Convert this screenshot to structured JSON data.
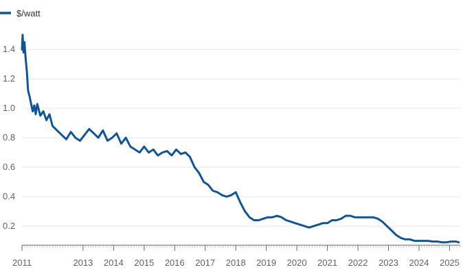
{
  "chart_data": {
    "type": "line",
    "title": "",
    "xlabel": "",
    "ylabel": "",
    "legend": {
      "placement": "top-left",
      "entries": [
        "$/watt"
      ]
    },
    "grid": true,
    "xlim": [
      2011.0,
      2025.35
    ],
    "ylim": [
      0.07,
      1.55
    ],
    "x_ticks": [
      "2011",
      "2013",
      "2014",
      "2015",
      "2016",
      "2017",
      "2018",
      "2019",
      "2020",
      "2021",
      "2022",
      "2023",
      "2024",
      "2025"
    ],
    "y_ticks": [
      "0.2",
      "0.4",
      "0.6",
      "0.8",
      "1.0",
      "1.2",
      "1.4"
    ],
    "colors": {
      "series": "#0f5499",
      "grid": "#e9e6e3",
      "text": "#66605c"
    },
    "series": [
      {
        "name": "$/watt",
        "x": [
          2011.0,
          2011.02,
          2011.05,
          2011.08,
          2011.12,
          2011.16,
          2011.2,
          2011.25,
          2011.3,
          2011.35,
          2011.4,
          2011.45,
          2011.5,
          2011.6,
          2011.7,
          2011.8,
          2011.9,
          2012.0,
          2012.15,
          2012.3,
          2012.45,
          2012.6,
          2012.75,
          2012.9,
          2013.05,
          2013.2,
          2013.35,
          2013.5,
          2013.65,
          2013.8,
          2013.95,
          2014.1,
          2014.25,
          2014.4,
          2014.55,
          2014.7,
          2014.85,
          2015.0,
          2015.15,
          2015.3,
          2015.45,
          2015.6,
          2015.75,
          2015.9,
          2016.05,
          2016.2,
          2016.35,
          2016.5,
          2016.65,
          2016.8,
          2016.95,
          2017.1,
          2017.25,
          2017.4,
          2017.55,
          2017.7,
          2017.85,
          2018.0,
          2018.15,
          2018.3,
          2018.45,
          2018.6,
          2018.75,
          2018.9,
          2019.05,
          2019.2,
          2019.35,
          2019.5,
          2019.65,
          2019.8,
          2019.95,
          2020.1,
          2020.25,
          2020.4,
          2020.55,
          2020.7,
          2020.85,
          2021.0,
          2021.15,
          2021.3,
          2021.45,
          2021.6,
          2021.75,
          2021.9,
          2022.05,
          2022.2,
          2022.35,
          2022.5,
          2022.65,
          2022.8,
          2022.95,
          2023.1,
          2023.25,
          2023.4,
          2023.55,
          2023.7,
          2023.85,
          2024.0,
          2024.15,
          2024.3,
          2024.45,
          2024.6,
          2024.75,
          2024.9,
          2025.05,
          2025.2,
          2025.3
        ],
        "values": [
          1.4,
          1.5,
          1.38,
          1.45,
          1.34,
          1.25,
          1.12,
          1.08,
          1.03,
          0.98,
          1.02,
          0.96,
          1.03,
          0.95,
          0.98,
          0.92,
          0.96,
          0.88,
          0.85,
          0.82,
          0.79,
          0.84,
          0.8,
          0.78,
          0.82,
          0.86,
          0.83,
          0.8,
          0.85,
          0.78,
          0.8,
          0.83,
          0.76,
          0.8,
          0.74,
          0.72,
          0.7,
          0.74,
          0.7,
          0.72,
          0.68,
          0.7,
          0.71,
          0.68,
          0.72,
          0.69,
          0.7,
          0.67,
          0.6,
          0.56,
          0.5,
          0.48,
          0.44,
          0.43,
          0.41,
          0.4,
          0.41,
          0.43,
          0.36,
          0.3,
          0.26,
          0.24,
          0.24,
          0.25,
          0.26,
          0.26,
          0.27,
          0.26,
          0.24,
          0.23,
          0.22,
          0.21,
          0.2,
          0.19,
          0.2,
          0.21,
          0.22,
          0.22,
          0.24,
          0.24,
          0.25,
          0.27,
          0.27,
          0.26,
          0.26,
          0.26,
          0.26,
          0.26,
          0.25,
          0.23,
          0.2,
          0.17,
          0.14,
          0.12,
          0.11,
          0.11,
          0.1,
          0.1,
          0.1,
          0.1,
          0.095,
          0.095,
          0.09,
          0.09,
          0.095,
          0.095,
          0.09
        ]
      }
    ]
  }
}
